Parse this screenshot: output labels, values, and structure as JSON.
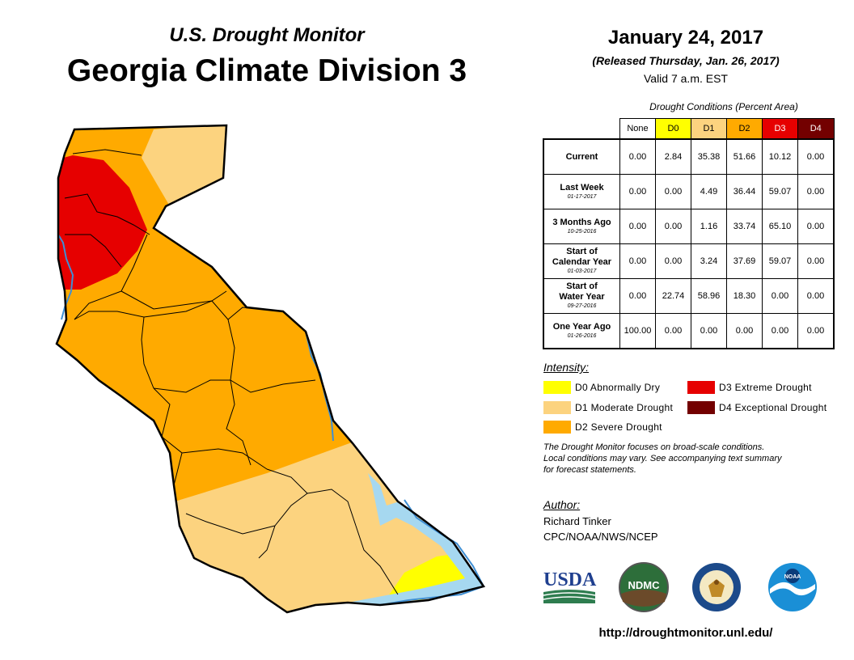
{
  "header": {
    "subtitle": "U.S. Drought Monitor",
    "title": "Georgia Climate Division 3",
    "date": "January 24, 2017",
    "released": "(Released Thursday, Jan. 26, 2017)",
    "valid": "Valid 7 a.m. EST"
  },
  "table": {
    "title": "Drought Conditions (Percent Area)",
    "columns": [
      {
        "label": "None",
        "color": "#ffffff",
        "text": "#000000"
      },
      {
        "label": "D0",
        "color": "#ffff00",
        "text": "#000000"
      },
      {
        "label": "D1",
        "color": "#fcd37f",
        "text": "#000000"
      },
      {
        "label": "D2",
        "color": "#ffaa00",
        "text": "#000000"
      },
      {
        "label": "D3",
        "color": "#e60000",
        "text": "#ffffff"
      },
      {
        "label": "D4",
        "color": "#730000",
        "text": "#ffffff"
      }
    ],
    "rows": [
      {
        "label_lines": [
          "Current"
        ],
        "date": "",
        "values": [
          "0.00",
          "2.84",
          "35.38",
          "51.66",
          "10.12",
          "0.00"
        ]
      },
      {
        "label_lines": [
          "Last Week"
        ],
        "date": "01-17-2017",
        "values": [
          "0.00",
          "0.00",
          "4.49",
          "36.44",
          "59.07",
          "0.00"
        ]
      },
      {
        "label_lines": [
          "3 Months Ago"
        ],
        "date": "10-25-2016",
        "values": [
          "0.00",
          "0.00",
          "1.16",
          "33.74",
          "65.10",
          "0.00"
        ]
      },
      {
        "label_lines": [
          "Start of",
          "Calendar Year"
        ],
        "date": "01-03-2017",
        "values": [
          "0.00",
          "0.00",
          "3.24",
          "37.69",
          "59.07",
          "0.00"
        ]
      },
      {
        "label_lines": [
          "Start of",
          "Water Year"
        ],
        "date": "09-27-2016",
        "values": [
          "0.00",
          "22.74",
          "58.96",
          "18.30",
          "0.00",
          "0.00"
        ]
      },
      {
        "label_lines": [
          "One Year Ago"
        ],
        "date": "01-26-2016",
        "values": [
          "100.00",
          "0.00",
          "0.00",
          "0.00",
          "0.00",
          "0.00"
        ]
      }
    ]
  },
  "legend": {
    "heading": "Intensity:",
    "items": [
      {
        "code": "d0",
        "label": "D0 Abnormally Dry",
        "color": "#ffff00"
      },
      {
        "code": "d1",
        "label": "D1 Moderate Drought",
        "color": "#fcd37f"
      },
      {
        "code": "d2",
        "label": "D2 Severe Drought",
        "color": "#ffaa00"
      },
      {
        "code": "d3",
        "label": "D3 Extreme Drought",
        "color": "#e60000"
      },
      {
        "code": "d4",
        "label": "D4 Exceptional Drought",
        "color": "#730000"
      }
    ]
  },
  "note": {
    "line1": "The Drought Monitor focuses on broad-scale conditions.",
    "line2": "Local conditions may vary. See accompanying text summary",
    "line3": "for forecast statements."
  },
  "author": {
    "heading": "Author:",
    "name": "Richard Tinker",
    "org": "CPC/NOAA/NWS/NCEP"
  },
  "logos": {
    "usda": "USDA",
    "ndmc": "NDMC",
    "noaa": "NOAA"
  },
  "map": {
    "region": "Georgia Climate Division 3",
    "colors": {
      "d0": "#ffff00",
      "d1": "#fcd37f",
      "d2": "#ffaa00",
      "d3": "#e60000",
      "water": "#a6d8f0",
      "river": "#3f8fd4"
    }
  },
  "footer": {
    "url": "http://droughtmonitor.unl.edu/"
  }
}
